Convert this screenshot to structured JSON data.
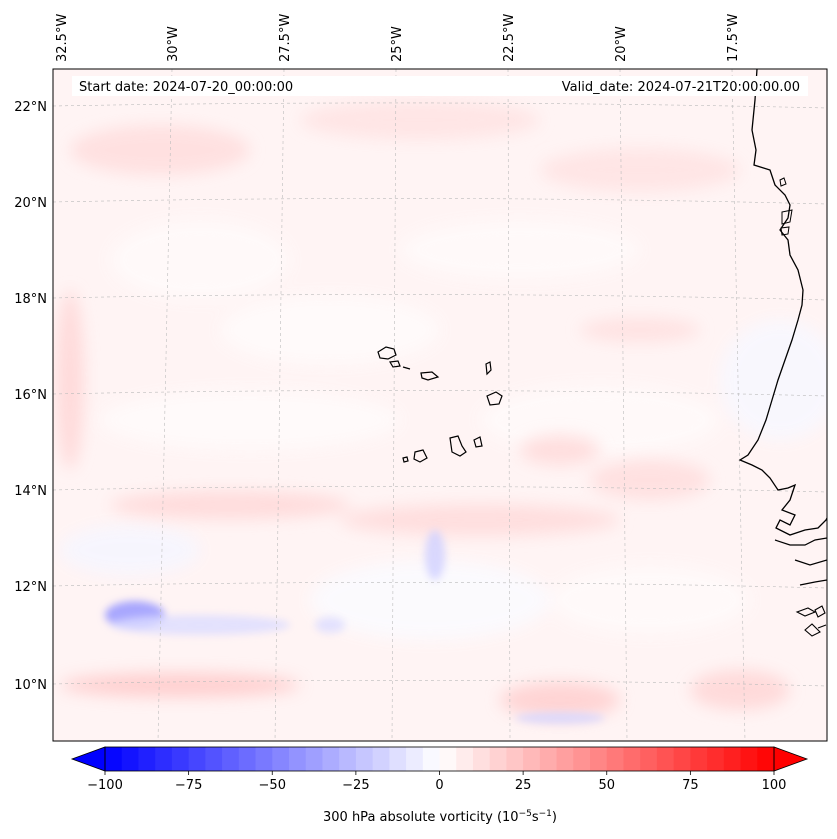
{
  "header": {
    "start_date": "Start date: 2024-07-20_00:00:00",
    "valid_date": "Valid_date: 2024-07-21T20:00:00.00"
  },
  "lon_labels": [
    "32.5°W",
    "30°W",
    "27.5°W",
    "25°W",
    "22.5°W",
    "20°W",
    "17.5°W"
  ],
  "lat_labels": [
    "22°N",
    "20°N",
    "18°N",
    "16°N",
    "14°N",
    "12°N",
    "10°N"
  ],
  "colorbar": {
    "label": "300 hPa absolute vorticity (10",
    "label_sup1": "−5",
    "label_mid": "s",
    "label_sup2": "−1",
    "label_end": ")",
    "ticks": [
      "−100",
      "−75",
      "−50",
      "−25",
      "0",
      "25",
      "50",
      "75",
      "100"
    ],
    "vmin": -100,
    "vmax": 100,
    "levels": 40,
    "colormap": "bwr"
  },
  "colors": {
    "land_outline": "#000000",
    "gridline": "#bbbbbb",
    "field_base": "#fff3f3"
  }
}
